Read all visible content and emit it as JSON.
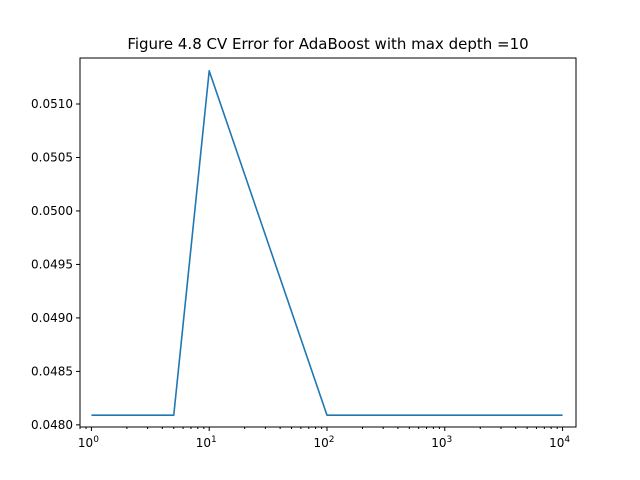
{
  "chart_data": {
    "type": "line",
    "title": "Figure 4.8 CV Error for AdaBoost with max depth =10",
    "xlabel": "",
    "ylabel": "",
    "xscale": "log",
    "xlim": [
      0.8,
      13000
    ],
    "ylim": [
      0.04798,
      0.05143
    ],
    "grid": false,
    "xticks": [
      {
        "value": 1,
        "base": "10",
        "exp": "0"
      },
      {
        "value": 10,
        "base": "10",
        "exp": "1"
      },
      {
        "value": 100,
        "base": "10",
        "exp": "2"
      },
      {
        "value": 1000,
        "base": "10",
        "exp": "3"
      },
      {
        "value": 10000,
        "base": "10",
        "exp": "4"
      }
    ],
    "yticks": [
      {
        "value": 0.048,
        "label": "0.0480"
      },
      {
        "value": 0.0485,
        "label": "0.0485"
      },
      {
        "value": 0.049,
        "label": "0.0490"
      },
      {
        "value": 0.0495,
        "label": "0.0495"
      },
      {
        "value": 0.05,
        "label": "0.0500"
      },
      {
        "value": 0.0505,
        "label": "0.0505"
      },
      {
        "value": 0.051,
        "label": "0.0510"
      }
    ],
    "series": [
      {
        "color": "#1f77b4",
        "x": [
          1,
          5,
          10,
          100,
          1000,
          10000
        ],
        "y": [
          0.04809,
          0.04809,
          0.05131,
          0.04809,
          0.04809,
          0.04809
        ]
      }
    ]
  }
}
